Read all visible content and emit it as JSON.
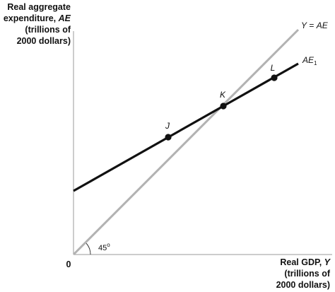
{
  "chart_data": {
    "type": "line",
    "title": "",
    "y_axis": {
      "label_lines": [
        {
          "parts": [
            {
              "t": "Real aggregate",
              "i": false
            }
          ]
        },
        {
          "parts": [
            {
              "t": "expenditure, ",
              "i": false
            },
            {
              "t": "AE",
              "i": true
            }
          ]
        },
        {
          "parts": [
            {
              "t": "(trillions of",
              "i": false
            }
          ]
        },
        {
          "parts": [
            {
              "t": "2000 dollars)",
              "i": false
            }
          ]
        }
      ]
    },
    "x_axis": {
      "label_lines": [
        {
          "parts": [
            {
              "t": "Real GDP, ",
              "i": false
            },
            {
              "t": "Y",
              "i": true
            }
          ]
        },
        {
          "parts": [
            {
              "t": "(trillions of",
              "i": false
            }
          ]
        },
        {
          "parts": [
            {
              "t": "2000 dollars)",
              "i": false
            }
          ]
        }
      ]
    },
    "origin_label": "0",
    "angle_label": "45",
    "angle_degree_mark": "o",
    "xlim": [
      0,
      370
    ],
    "ylim": [
      0,
      360
    ],
    "series": [
      {
        "name_parts": [
          {
            "t": "Y",
            "i": true
          },
          {
            "t": " = ",
            "i": false
          },
          {
            "t": "AE",
            "i": true
          }
        ],
        "color": "#b2b2b2",
        "points": [
          [
            0,
            0
          ],
          [
            318,
            318
          ]
        ]
      },
      {
        "name_parts": [
          {
            "t": "AE",
            "i": true
          }
        ],
        "name_sub": "1",
        "color": "#111111",
        "points": [
          [
            0,
            90
          ],
          [
            318,
            270
          ]
        ]
      }
    ],
    "points": [
      {
        "label": "J",
        "x": 134,
        "y": 166
      },
      {
        "label": "K",
        "x": 212,
        "y": 210
      },
      {
        "label": "L",
        "x": 284,
        "y": 250
      }
    ]
  }
}
